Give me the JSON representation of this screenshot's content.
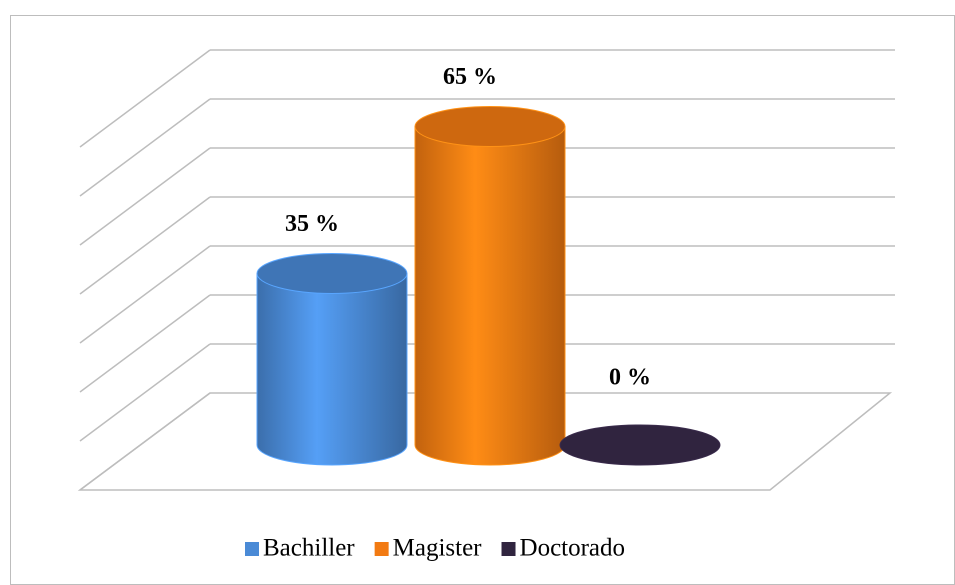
{
  "chart_data": {
    "type": "cylinder-bar",
    "series": [
      {
        "name": "Bachiller",
        "color": "#4a8ad6",
        "values": [
          35
        ],
        "value_labels": [
          "35 %"
        ]
      },
      {
        "name": "Magister",
        "color": "#f27a12",
        "values": [
          65
        ],
        "value_labels": [
          "65 %"
        ]
      },
      {
        "name": "Doctorado",
        "color": "#30243f",
        "values": [
          0
        ],
        "value_labels": [
          "0 %"
        ]
      }
    ],
    "ylim": [
      0,
      70
    ],
    "yticks": [
      0,
      10,
      20,
      30,
      40,
      50,
      60,
      70
    ],
    "grid": true
  }
}
